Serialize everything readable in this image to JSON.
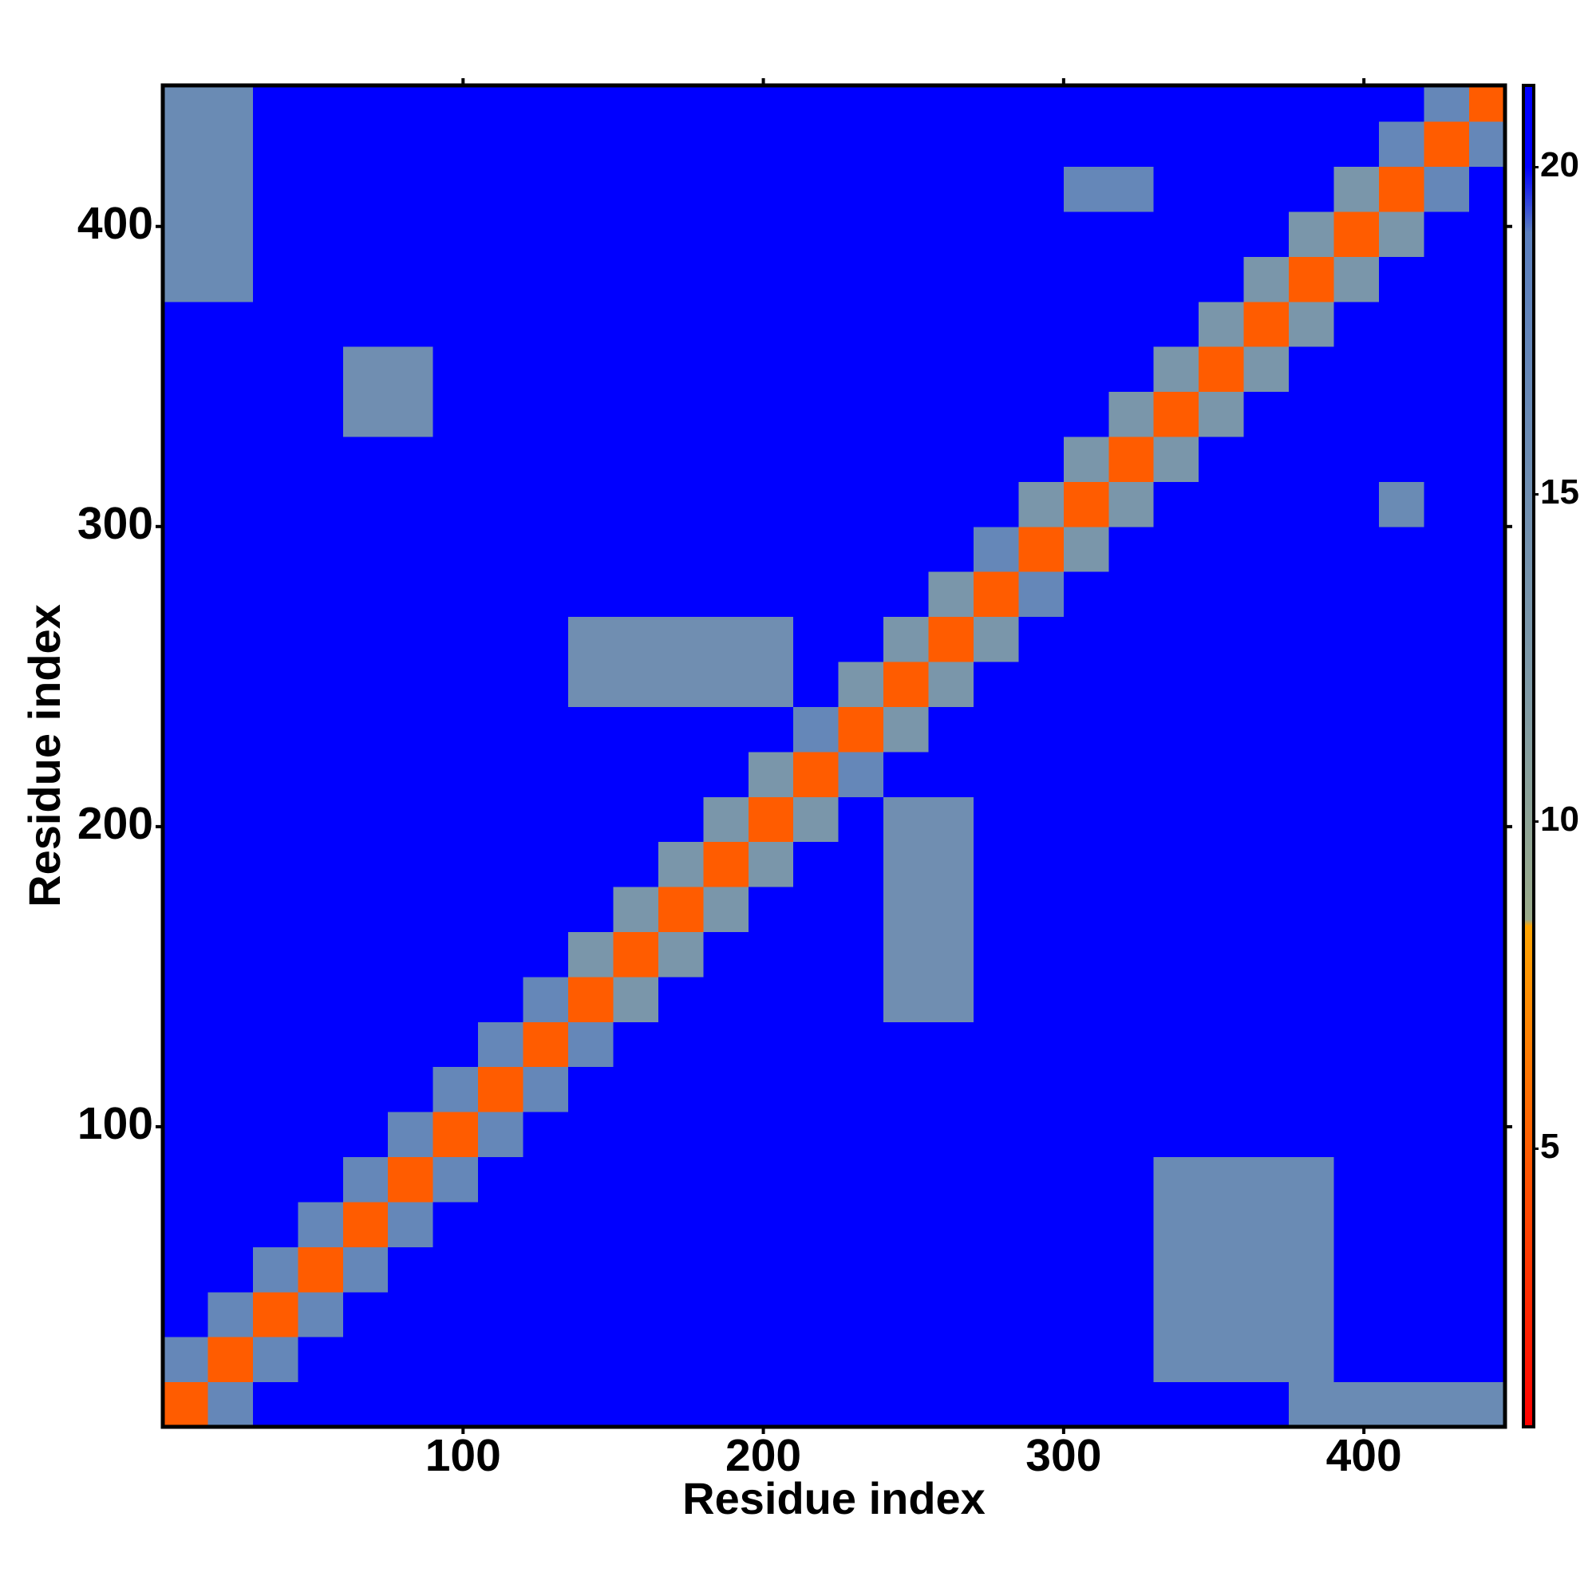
{
  "chart_data": {
    "type": "heatmap",
    "x_label": "Residue index",
    "y_label": "Residue index",
    "xlim": [
      0,
      447
    ],
    "ylim": [
      0,
      447
    ],
    "xticks": [
      100,
      200,
      300,
      400
    ],
    "yticks": [
      100,
      200,
      300,
      400
    ],
    "xbins": [
      0,
      15,
      30,
      45,
      60,
      75,
      90,
      105,
      120,
      135,
      150,
      165,
      180,
      195,
      210,
      225,
      240,
      255,
      270,
      285,
      300,
      315,
      330,
      345,
      360,
      375,
      390,
      405,
      420,
      435,
      447
    ],
    "ybins": [
      0,
      15,
      30,
      45,
      60,
      75,
      90,
      105,
      120,
      135,
      150,
      165,
      180,
      195,
      210,
      225,
      240,
      255,
      270,
      285,
      300,
      315,
      330,
      345,
      360,
      375,
      390,
      405,
      420,
      435,
      447
    ],
    "z": [
      [
        5,
        17,
        21,
        21,
        21,
        21,
        21,
        21,
        21,
        21,
        21,
        21,
        21,
        21,
        21,
        21,
        21,
        21,
        21,
        21,
        21,
        21,
        21,
        21,
        21,
        16,
        16,
        16,
        16,
        16
      ],
      [
        17,
        5,
        17,
        21,
        21,
        21,
        21,
        21,
        21,
        21,
        21,
        21,
        21,
        21,
        21,
        21,
        21,
        21,
        21,
        21,
        21,
        21,
        16,
        16,
        16,
        16,
        21,
        21,
        21,
        21
      ],
      [
        21,
        17,
        5,
        17,
        21,
        21,
        21,
        21,
        21,
        21,
        21,
        21,
        21,
        21,
        21,
        21,
        21,
        21,
        21,
        21,
        21,
        21,
        16,
        16,
        16,
        16,
        21,
        21,
        21,
        21
      ],
      [
        21,
        21,
        17,
        5,
        17,
        21,
        21,
        21,
        21,
        21,
        21,
        21,
        21,
        21,
        21,
        21,
        21,
        21,
        21,
        21,
        21,
        21,
        16,
        16,
        16,
        16,
        21,
        21,
        21,
        21
      ],
      [
        21,
        21,
        21,
        17,
        5,
        17,
        21,
        21,
        21,
        21,
        21,
        21,
        21,
        21,
        21,
        21,
        21,
        21,
        21,
        21,
        21,
        21,
        16,
        16,
        16,
        16,
        21,
        21,
        21,
        21
      ],
      [
        21,
        21,
        21,
        21,
        17,
        5,
        17,
        21,
        21,
        21,
        21,
        21,
        21,
        21,
        21,
        21,
        21,
        21,
        21,
        21,
        21,
        21,
        16,
        16,
        16,
        16,
        21,
        21,
        21,
        21
      ],
      [
        21,
        21,
        21,
        21,
        21,
        17,
        5,
        17,
        21,
        21,
        21,
        21,
        21,
        21,
        21,
        21,
        21,
        21,
        21,
        21,
        21,
        21,
        21,
        21,
        21,
        21,
        21,
        21,
        21,
        21
      ],
      [
        21,
        21,
        21,
        21,
        21,
        21,
        17,
        5,
        17,
        21,
        21,
        21,
        21,
        21,
        21,
        21,
        21,
        21,
        21,
        21,
        21,
        21,
        21,
        21,
        21,
        21,
        21,
        21,
        21,
        21
      ],
      [
        21,
        21,
        21,
        21,
        21,
        21,
        21,
        17,
        5,
        17,
        21,
        21,
        21,
        21,
        21,
        21,
        21,
        21,
        21,
        21,
        21,
        21,
        21,
        21,
        21,
        21,
        21,
        21,
        21,
        21
      ],
      [
        21,
        21,
        21,
        21,
        21,
        21,
        21,
        21,
        17,
        5,
        13,
        21,
        21,
        21,
        21,
        21,
        15,
        15,
        21,
        21,
        21,
        21,
        21,
        21,
        21,
        21,
        21,
        21,
        21,
        21
      ],
      [
        21,
        21,
        21,
        21,
        21,
        21,
        21,
        21,
        21,
        13,
        5,
        13,
        21,
        21,
        21,
        21,
        15,
        15,
        21,
        21,
        21,
        21,
        21,
        21,
        21,
        21,
        21,
        21,
        21,
        21
      ],
      [
        21,
        21,
        21,
        21,
        21,
        21,
        21,
        21,
        21,
        21,
        13,
        5,
        13,
        21,
        21,
        21,
        15,
        15,
        21,
        21,
        21,
        21,
        21,
        21,
        21,
        21,
        21,
        21,
        21,
        21
      ],
      [
        21,
        21,
        21,
        21,
        21,
        21,
        21,
        21,
        21,
        21,
        21,
        13,
        5,
        13,
        21,
        21,
        15,
        15,
        21,
        21,
        21,
        21,
        21,
        21,
        21,
        21,
        21,
        21,
        21,
        21
      ],
      [
        21,
        21,
        21,
        21,
        21,
        21,
        21,
        21,
        21,
        21,
        21,
        21,
        13,
        5,
        13,
        21,
        15,
        15,
        21,
        21,
        21,
        21,
        21,
        21,
        21,
        21,
        21,
        21,
        21,
        21
      ],
      [
        21,
        21,
        21,
        21,
        21,
        21,
        21,
        21,
        21,
        21,
        21,
        21,
        21,
        13,
        5,
        17,
        21,
        21,
        21,
        21,
        21,
        21,
        21,
        21,
        21,
        21,
        21,
        21,
        21,
        21
      ],
      [
        21,
        21,
        21,
        21,
        21,
        21,
        21,
        21,
        21,
        21,
        21,
        21,
        21,
        21,
        17,
        5,
        13,
        21,
        21,
        21,
        21,
        21,
        21,
        21,
        21,
        21,
        21,
        21,
        21,
        21
      ],
      [
        21,
        21,
        21,
        21,
        21,
        21,
        21,
        21,
        21,
        15,
        15,
        15,
        15,
        15,
        21,
        13,
        5,
        13,
        21,
        21,
        21,
        21,
        21,
        21,
        21,
        21,
        21,
        21,
        21,
        21
      ],
      [
        21,
        21,
        21,
        21,
        21,
        21,
        21,
        21,
        21,
        15,
        15,
        15,
        15,
        15,
        21,
        21,
        13,
        5,
        13,
        21,
        21,
        21,
        21,
        21,
        21,
        21,
        21,
        21,
        21,
        21
      ],
      [
        21,
        21,
        21,
        21,
        21,
        21,
        21,
        21,
        21,
        21,
        21,
        21,
        21,
        21,
        21,
        21,
        21,
        13,
        5,
        17,
        21,
        21,
        21,
        21,
        21,
        21,
        21,
        21,
        21,
        21
      ],
      [
        21,
        21,
        21,
        21,
        21,
        21,
        21,
        21,
        21,
        21,
        21,
        21,
        21,
        21,
        21,
        21,
        21,
        21,
        17,
        5,
        13,
        21,
        21,
        21,
        21,
        21,
        21,
        21,
        21,
        21
      ],
      [
        21,
        21,
        21,
        21,
        21,
        21,
        21,
        21,
        21,
        21,
        21,
        21,
        21,
        21,
        21,
        21,
        21,
        21,
        21,
        13,
        5,
        13,
        21,
        21,
        21,
        21,
        21,
        16,
        21,
        21
      ],
      [
        21,
        21,
        21,
        21,
        21,
        21,
        21,
        21,
        21,
        21,
        21,
        21,
        21,
        21,
        21,
        21,
        21,
        21,
        21,
        21,
        13,
        5,
        13,
        21,
        21,
        21,
        21,
        21,
        21,
        21
      ],
      [
        21,
        21,
        21,
        21,
        15,
        15,
        21,
        21,
        21,
        21,
        21,
        21,
        21,
        21,
        21,
        21,
        21,
        21,
        21,
        21,
        21,
        13,
        5,
        13,
        21,
        21,
        21,
        21,
        21,
        21
      ],
      [
        21,
        21,
        21,
        21,
        15,
        15,
        21,
        21,
        21,
        21,
        21,
        21,
        21,
        21,
        21,
        21,
        21,
        21,
        21,
        21,
        21,
        21,
        13,
        5,
        13,
        21,
        21,
        21,
        21,
        21
      ],
      [
        21,
        21,
        21,
        21,
        21,
        21,
        21,
        21,
        21,
        21,
        21,
        21,
        21,
        21,
        21,
        21,
        21,
        21,
        21,
        21,
        21,
        21,
        21,
        13,
        5,
        13,
        21,
        21,
        21,
        21
      ],
      [
        16,
        16,
        21,
        21,
        21,
        21,
        21,
        21,
        21,
        21,
        21,
        21,
        21,
        21,
        21,
        21,
        21,
        21,
        21,
        21,
        21,
        21,
        21,
        21,
        13,
        5,
        13,
        21,
        21,
        21
      ],
      [
        16,
        16,
        21,
        21,
        21,
        21,
        21,
        21,
        21,
        21,
        21,
        21,
        21,
        21,
        21,
        21,
        21,
        21,
        21,
        21,
        21,
        21,
        21,
        21,
        21,
        13,
        5,
        13,
        21,
        21
      ],
      [
        16,
        16,
        21,
        21,
        21,
        21,
        21,
        21,
        21,
        21,
        21,
        21,
        21,
        21,
        21,
        21,
        21,
        21,
        21,
        21,
        17,
        17,
        21,
        21,
        21,
        21,
        13,
        5,
        17,
        21
      ],
      [
        16,
        16,
        21,
        21,
        21,
        21,
        21,
        21,
        21,
        21,
        21,
        21,
        21,
        21,
        21,
        21,
        21,
        21,
        21,
        21,
        21,
        21,
        21,
        21,
        21,
        21,
        21,
        17,
        5,
        17
      ],
      [
        16,
        16,
        21,
        21,
        21,
        21,
        21,
        21,
        21,
        21,
        21,
        21,
        21,
        21,
        21,
        21,
        21,
        21,
        21,
        21,
        21,
        21,
        21,
        21,
        21,
        21,
        21,
        21,
        17,
        5
      ]
    ],
    "colorscale": [
      [
        0.75,
        "#ff0000"
      ],
      [
        8.4,
        "#ffa500"
      ],
      [
        8.5,
        "#9aab8a"
      ],
      [
        12,
        "#7f9aa6"
      ],
      [
        19,
        "#5b7fbf"
      ],
      [
        20,
        "#0000ff"
      ],
      [
        21.25,
        "#0000ff"
      ]
    ],
    "colorbar": {
      "lim": [
        0.75,
        21.25
      ],
      "ticks": [
        5,
        10,
        15,
        20
      ]
    }
  }
}
